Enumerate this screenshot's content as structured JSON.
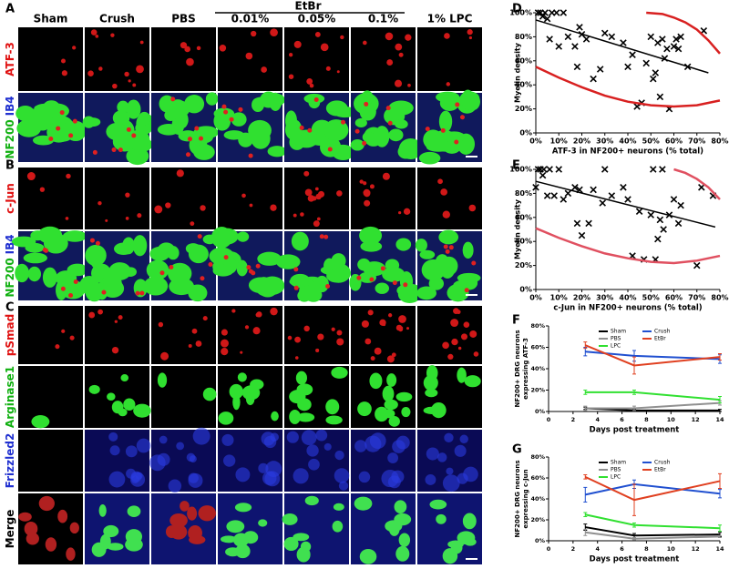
{
  "figure": {
    "panel_labels": [
      "A",
      "B",
      "C",
      "D",
      "E",
      "F",
      "G"
    ],
    "columns": [
      "Sham",
      "Crush",
      "PBS",
      "0.01%",
      "0.05%",
      "0.1%",
      "1% LPC"
    ],
    "group_label": "EtBr",
    "row_labels": [
      [
        {
          "text": "ATF-3",
          "color": "#e01010"
        }
      ],
      [
        {
          "text": "NF200",
          "color": "#10b010"
        },
        {
          "text": "IB4",
          "color": "#2030d0"
        }
      ],
      [
        {
          "text": "c-Jun",
          "color": "#e01010"
        }
      ],
      [
        {
          "text": "NF200",
          "color": "#10b010"
        },
        {
          "text": "IB4",
          "color": "#2030d0"
        }
      ],
      [
        {
          "text": "pSmad",
          "color": "#e01010"
        }
      ],
      [
        {
          "text": "Arginase1",
          "color": "#10b010"
        }
      ],
      [
        {
          "text": "Frizzled2",
          "color": "#2030d0"
        }
      ],
      [
        {
          "text": "Merge",
          "color": "#000000"
        }
      ]
    ]
  },
  "chart_data": [
    {
      "type": "scatter",
      "ylabel": "Myelin density",
      "xlabel": "ATF-3 in NF200+ neurons (% total)",
      "xlim": [
        0,
        80
      ],
      "ylim": [
        0,
        100
      ],
      "xticks": [
        {
          "value": 0,
          "label": "0%"
        },
        {
          "value": 10,
          "label": "10%"
        },
        {
          "value": 20,
          "label": "20%"
        },
        {
          "value": 30,
          "label": "30%"
        },
        {
          "value": 40,
          "label": "40%"
        },
        {
          "value": 50,
          "label": "50%"
        },
        {
          "value": 60,
          "label": "60%"
        },
        {
          "value": 70,
          "label": "70%"
        },
        {
          "value": 80,
          "label": "80%"
        }
      ],
      "yticks": [
        {
          "value": 0,
          "label": "0%"
        },
        {
          "value": 20,
          "label": "20%"
        },
        {
          "value": 40,
          "label": "40%"
        },
        {
          "value": 60,
          "label": "60%"
        },
        {
          "value": 80,
          "label": "80%"
        },
        {
          "value": 100,
          "label": "100%"
        }
      ],
      "series": [
        {
          "mode": "markers",
          "color": "#000000",
          "x": [
            1,
            2,
            3,
            4,
            5,
            6,
            7,
            9,
            10,
            12,
            14,
            17,
            18,
            19,
            20,
            22,
            25,
            28,
            30,
            33,
            38,
            40,
            42,
            44,
            46,
            48,
            50,
            51,
            52,
            53,
            54,
            55,
            56,
            57,
            58,
            60,
            61,
            62,
            63,
            66,
            73
          ],
          "values": [
            100,
            100,
            97,
            100,
            95,
            78,
            100,
            100,
            72,
            100,
            80,
            72,
            55,
            88,
            82,
            78,
            45,
            53,
            83,
            80,
            75,
            55,
            65,
            22,
            25,
            58,
            80,
            45,
            50,
            75,
            30,
            78,
            62,
            70,
            20,
            72,
            78,
            70,
            80,
            55,
            85
          ]
        },
        {
          "mode": "lines",
          "color": "#000000",
          "x": [
            0,
            75
          ],
          "values": [
            94,
            50
          ]
        },
        {
          "mode": "lines",
          "color": "#d82020",
          "x": [
            0,
            10,
            20,
            30,
            40,
            50,
            60,
            70,
            80
          ],
          "values": [
            55,
            46,
            38,
            31,
            26,
            23,
            22,
            23,
            27
          ]
        },
        {
          "mode": "lines",
          "color": "#d82020",
          "x": [
            48,
            55,
            60,
            65,
            70,
            75,
            80
          ],
          "values": [
            100,
            99,
            96,
            92,
            86,
            77,
            66
          ]
        }
      ]
    },
    {
      "type": "scatter",
      "ylabel": "Myelin density",
      "xlabel": "c-Jun in NF200+ neurons (% total)",
      "xlim": [
        0,
        80
      ],
      "ylim": [
        0,
        100
      ],
      "xticks": [
        {
          "value": 0,
          "label": "0%"
        },
        {
          "value": 10,
          "label": "10%"
        },
        {
          "value": 20,
          "label": "20%"
        },
        {
          "value": 30,
          "label": "30%"
        },
        {
          "value": 40,
          "label": "40%"
        },
        {
          "value": 50,
          "label": "50%"
        },
        {
          "value": 60,
          "label": "60%"
        },
        {
          "value": 70,
          "label": "70%"
        },
        {
          "value": 80,
          "label": "80%"
        }
      ],
      "yticks": [
        {
          "value": 0,
          "label": "0%"
        },
        {
          "value": 20,
          "label": "20%"
        },
        {
          "value": 40,
          "label": "40%"
        },
        {
          "value": 60,
          "label": "60%"
        },
        {
          "value": 80,
          "label": "80%"
        },
        {
          "value": 100,
          "label": "100%"
        }
      ],
      "series": [
        {
          "mode": "markers",
          "color": "#000000",
          "x": [
            0,
            1,
            2,
            3,
            3.5,
            5,
            6,
            8,
            10,
            12,
            14,
            17,
            18,
            19,
            20,
            23,
            25,
            29,
            30,
            33,
            38,
            40,
            42,
            45,
            47,
            50,
            51,
            52,
            53,
            54,
            55,
            55.5,
            58,
            60,
            62,
            63,
            70,
            72,
            77
          ],
          "values": [
            85,
            100,
            100,
            95,
            100,
            78,
            100,
            78,
            100,
            75,
            80,
            85,
            55,
            83,
            45,
            55,
            83,
            72,
            100,
            78,
            85,
            75,
            28,
            65,
            25,
            62,
            100,
            25,
            42,
            58,
            100,
            50,
            62,
            75,
            55,
            70,
            20,
            85,
            78
          ]
        },
        {
          "mode": "lines",
          "color": "#000000",
          "x": [
            0,
            78
          ],
          "values": [
            90,
            52
          ]
        },
        {
          "mode": "lines",
          "color": "#e05060",
          "x": [
            0,
            10,
            20,
            30,
            40,
            50,
            60,
            70,
            80
          ],
          "values": [
            51,
            43,
            36,
            30,
            26,
            23,
            22,
            24,
            28
          ]
        },
        {
          "mode": "lines",
          "color": "#e05060",
          "x": [
            60,
            65,
            70,
            75,
            80
          ],
          "values": [
            100,
            97,
            92,
            85,
            75
          ]
        }
      ]
    },
    {
      "type": "line",
      "ylabel": [
        "NF200+ DRG neurons",
        "expressing ATF-3"
      ],
      "xlabel": "Days post treatment",
      "x": [
        3,
        7,
        14
      ],
      "xlim": [
        0,
        14
      ],
      "xticks": [
        0,
        2,
        4,
        6,
        8,
        10,
        12,
        14
      ],
      "ylim": [
        0,
        80
      ],
      "yticks": [
        {
          "value": 0,
          "label": "0%"
        },
        {
          "value": 20,
          "label": "20%"
        },
        {
          "value": 40,
          "label": "40%"
        },
        {
          "value": 60,
          "label": "60%"
        },
        {
          "value": 80,
          "label": "80%"
        }
      ],
      "series": [
        {
          "name": "Sham",
          "color": "#000000",
          "values": [
            3,
            1,
            1
          ],
          "errors": [
            1,
            1,
            1
          ]
        },
        {
          "name": "Crush",
          "color": "#2050d0",
          "values": [
            56,
            52,
            49
          ],
          "errors": [
            4,
            5,
            4
          ]
        },
        {
          "name": "PBS",
          "color": "#909090",
          "values": [
            3,
            3,
            8
          ],
          "errors": [
            2,
            2,
            2
          ]
        },
        {
          "name": "EtBr",
          "color": "#e04020",
          "values": [
            62,
            43,
            51
          ],
          "errors": [
            3,
            8,
            3
          ]
        },
        {
          "name": "LPC",
          "color": "#30e030",
          "values": [
            18,
            18,
            11
          ],
          "errors": [
            2,
            2,
            3
          ]
        }
      ]
    },
    {
      "type": "line",
      "ylabel": [
        "NF200+ DRG neurons",
        "expressing c-Jun"
      ],
      "xlabel": "Days post treatment",
      "x": [
        3,
        7,
        14
      ],
      "xlim": [
        0,
        14
      ],
      "xticks": [
        0,
        2,
        4,
        6,
        8,
        10,
        12,
        14
      ],
      "ylim": [
        0,
        80
      ],
      "yticks": [
        {
          "value": 0,
          "label": "0%"
        },
        {
          "value": 20,
          "label": "20%"
        },
        {
          "value": 40,
          "label": "40%"
        },
        {
          "value": 60,
          "label": "60%"
        },
        {
          "value": 80,
          "label": "80%"
        }
      ],
      "series": [
        {
          "name": "Sham",
          "color": "#000000",
          "values": [
            13,
            5,
            6
          ],
          "errors": [
            3,
            2,
            2
          ]
        },
        {
          "name": "Crush",
          "color": "#2050d0",
          "values": [
            44,
            54,
            45
          ],
          "errors": [
            7,
            4,
            4
          ]
        },
        {
          "name": "PBS",
          "color": "#909090",
          "values": [
            8,
            2,
            4
          ],
          "errors": [
            3,
            1,
            1
          ]
        },
        {
          "name": "EtBr",
          "color": "#e04020",
          "values": [
            61,
            39,
            57
          ],
          "errors": [
            2,
            15,
            7
          ]
        },
        {
          "name": "LPC",
          "color": "#30e030",
          "values": [
            25,
            15,
            12
          ],
          "errors": [
            2,
            2,
            3
          ]
        }
      ]
    }
  ]
}
